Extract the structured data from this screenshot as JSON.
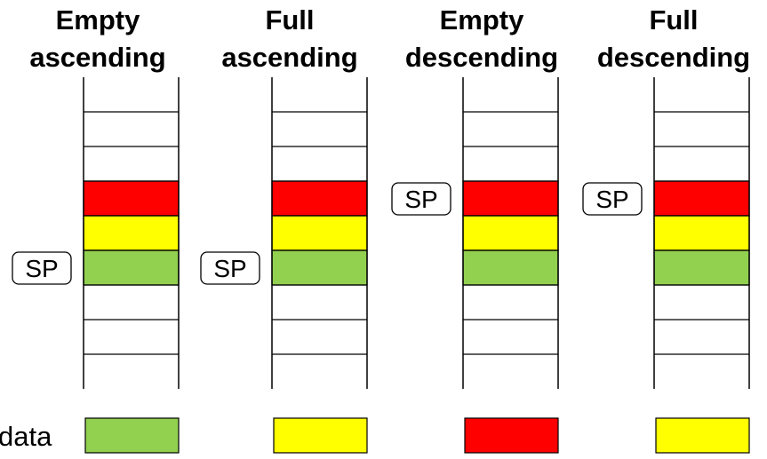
{
  "data_label": "data",
  "colors": {
    "red": "#ff0000",
    "yellow": "#ffff00",
    "green": "#92d050",
    "line": "#000000"
  },
  "stacks": [
    {
      "title_line1": "Empty",
      "title_line2": "ascending",
      "sp_label": "SP",
      "sp_cell": 5,
      "data_color": "green"
    },
    {
      "title_line1": "Full",
      "title_line2": "ascending",
      "sp_label": "SP",
      "sp_cell": 5,
      "data_color": "yellow"
    },
    {
      "title_line1": "Empty",
      "title_line2": "descending",
      "sp_label": "SP",
      "sp_cell": 3,
      "data_color": "red"
    },
    {
      "title_line1": "Full",
      "title_line2": "descending",
      "sp_label": "SP",
      "sp_cell": 3,
      "data_color": "yellow"
    }
  ],
  "cells": [
    "",
    "",
    "",
    "red",
    "yellow",
    "green",
    "",
    "",
    ""
  ]
}
